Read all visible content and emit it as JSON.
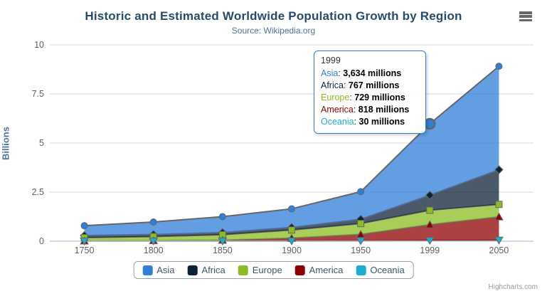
{
  "header": {
    "title": "Historic and Estimated Worldwide Population Growth by Region",
    "subtitle": "Source: Wikipedia.org"
  },
  "chart_data": {
    "type": "area",
    "stacking": "normal",
    "categories": [
      "1750",
      "1800",
      "1850",
      "1900",
      "1950",
      "1999",
      "2050"
    ],
    "series": [
      {
        "name": "Asia",
        "color": "#2f7ed8",
        "marker": "circle",
        "values": [
          502,
          635,
          809,
          947,
          1402,
          3634,
          5268
        ]
      },
      {
        "name": "Africa",
        "color": "#0d233a",
        "marker": "diamond",
        "values": [
          106,
          107,
          111,
          133,
          221,
          767,
          1766
        ]
      },
      {
        "name": "Europe",
        "color": "#8bbc21",
        "marker": "square",
        "values": [
          163,
          203,
          276,
          408,
          547,
          729,
          628
        ]
      },
      {
        "name": "America",
        "color": "#910000",
        "marker": "triangle",
        "values": [
          18,
          31,
          54,
          156,
          339,
          818,
          1201
        ]
      },
      {
        "name": "Oceania",
        "color": "#1aadce",
        "marker": "triangle-down",
        "values": [
          2,
          2,
          2,
          6,
          13,
          30,
          46
        ]
      }
    ],
    "values_unit": "millions",
    "ylabel": "Billions",
    "yticks": [
      "0",
      "2.5",
      "5",
      "7.5",
      "10"
    ],
    "ylim": [
      0,
      10
    ],
    "grid": true,
    "legend_position": "bottom",
    "fill_opacity": 0.75,
    "line_color": "#666666",
    "grid_color": "#d8d8d8",
    "axis_line_color": "#c0d0e0",
    "label_color": "#606060",
    "hover_point": {
      "series_index": 0,
      "point_index": 5
    }
  },
  "tooltip": {
    "header": "1999",
    "border_color": "#2f7ed8",
    "rows": [
      {
        "name": "Asia",
        "color": "#2f7ed8",
        "value": "3,634 millions"
      },
      {
        "name": "Africa",
        "color": "#0d233a",
        "value": "767 millions"
      },
      {
        "name": "Europe",
        "color": "#8bbc21",
        "value": "729 millions"
      },
      {
        "name": "America",
        "color": "#910000",
        "value": "818 millions"
      },
      {
        "name": "Oceania",
        "color": "#1aadce",
        "value": "30 millions"
      }
    ]
  },
  "credits": "Highcharts.com"
}
